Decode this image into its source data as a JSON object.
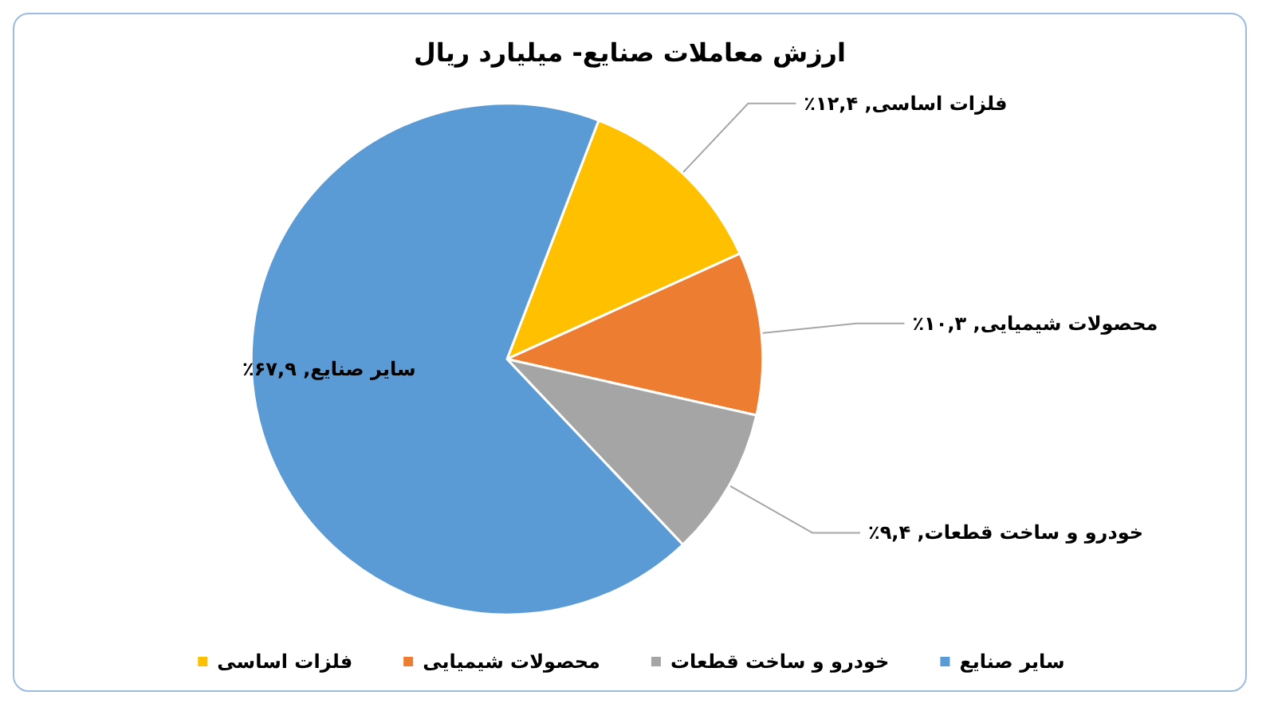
{
  "chart_data": {
    "type": "pie",
    "title": "ارزش معاملات صنایع- میلیارد ریال",
    "categories": [
      "فلزات اساسی",
      "محصولات شیمیایی",
      "خودرو و ساخت قطعات",
      "سایر صنایع"
    ],
    "values": [
      12.4,
      10.3,
      9.4,
      67.9
    ],
    "colors": [
      "#ffc000",
      "#ed7d31",
      "#a5a5a5",
      "#5b9bd5"
    ],
    "value_labels": [
      "فلزات اساسی, ۱۲,۴٪",
      "محصولات شیمیایی, ۱۰,۳٪",
      "خودرو و ساخت قطعات, ۹,۴٪",
      "سایر صنایع, ۶۷,۹٪"
    ],
    "legend": "bottom"
  }
}
